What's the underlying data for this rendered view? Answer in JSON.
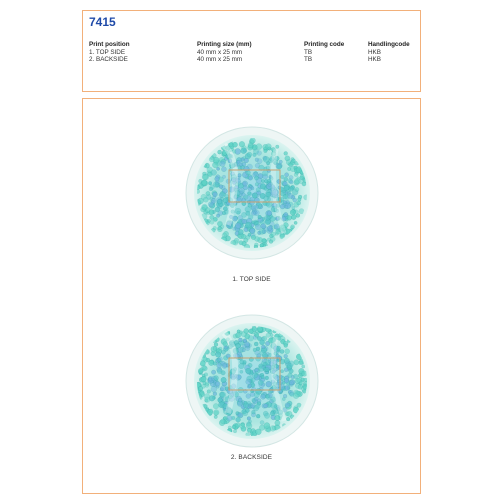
{
  "header": {
    "article_number": "7415",
    "columns": {
      "position": "Print position",
      "size": "Printing size (mm)",
      "code": "Printing code",
      "handling": "Handlingcode"
    },
    "rows": [
      {
        "position": "1. TOP SIDE",
        "size": "40 mm x 25 mm",
        "code": "TB",
        "handling": "HKB"
      },
      {
        "position": "2. BACKSIDE",
        "size": "40 mm x 25 mm",
        "code": "TB",
        "handling": "HKB"
      }
    ]
  },
  "views": [
    {
      "caption": "1. TOP SIDE",
      "image": "round-gel-pack-top-side"
    },
    {
      "caption": "2. BACKSIDE",
      "image": "round-gel-pack-backside"
    }
  ],
  "colors": {
    "accent_border": "#f2b07a",
    "article_number": "#1f4aa8",
    "print_area": "#c9a070",
    "gel": "#4fc9c0"
  }
}
